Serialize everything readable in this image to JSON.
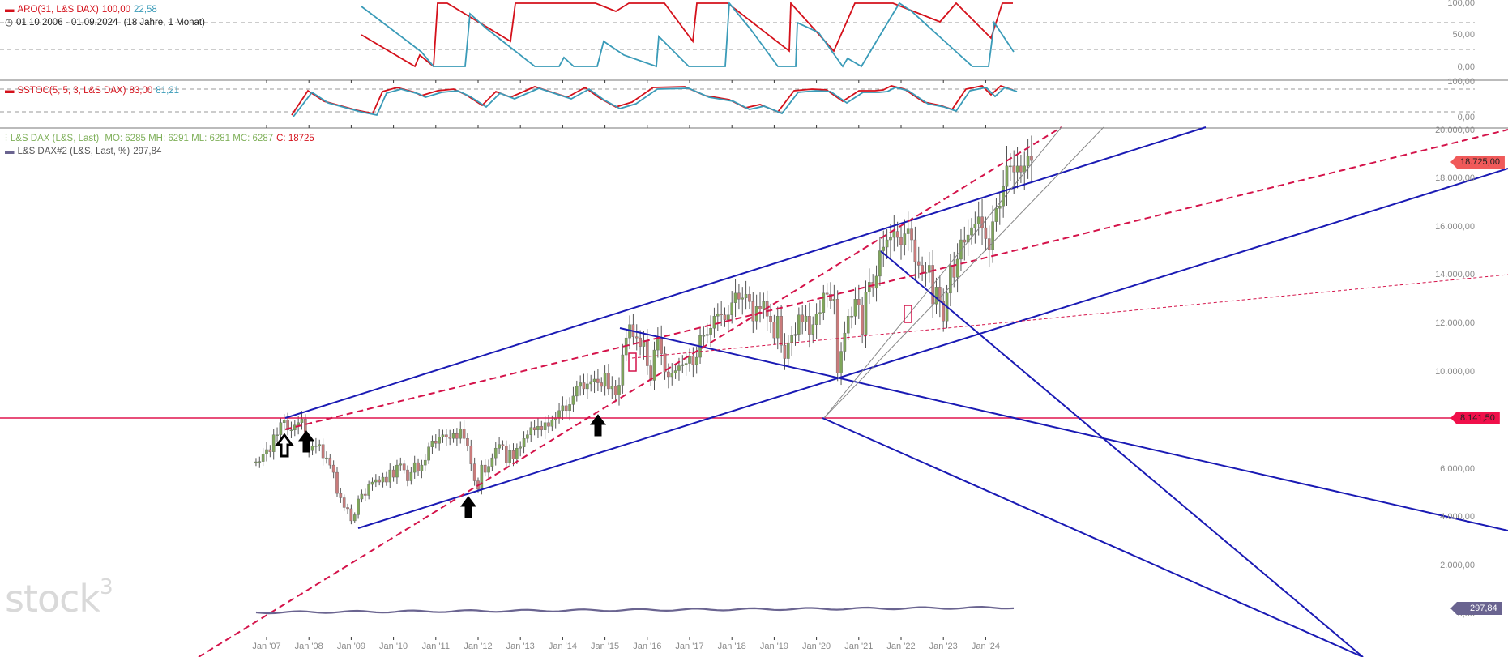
{
  "panels": {
    "aro": {
      "legend_name": "ARO(31, L&S DAX)",
      "value_up": "100,00",
      "value_down": "22,58",
      "date_range": "01.10.2006 - 01.09.2024",
      "duration": "(18 Jahre, 1 Monat)",
      "ticks": [
        "100,00",
        "50,00",
        "0,00"
      ],
      "colors": {
        "up": "#d4111b",
        "down": "#3a9bb8"
      }
    },
    "sstoc": {
      "legend_name": "SSTOC(5, 5, 3, L&S DAX)",
      "value_k": "83,00",
      "value_d": "81,21",
      "ticks": [
        "100,00",
        "0,00"
      ],
      "colors": {
        "k": "#d4111b",
        "d": "#3a9bb8"
      }
    },
    "main": {
      "series1_legend": "L&S DAX (L&S, Last)",
      "series1_ohlc": "MO: 6285 MH: 6291 ML: 6281 MC: 6287",
      "series1_close": "C: 18725",
      "series2_legend": "L&S DAX#2 (L&S, Last, %)",
      "series2_value": "297,84",
      "ticks": [
        "20.000,00",
        "18.000,00",
        "16.000,00",
        "14.000,00",
        "12.000,00",
        "10.000,00",
        "6.000,00",
        "4.000,00",
        "2.000,00",
        "0,00"
      ],
      "price_tags": {
        "last": "18.725,00",
        "hline": "8.141,50",
        "pct": "297,84"
      },
      "colors": {
        "up": "#7fa65a",
        "down": "#c97b7b",
        "channel": "#1a1ab4",
        "trend": "#d4134a",
        "hline": "#e0154f",
        "pct": "#6a6490",
        "last_tag": "#f05a5a",
        "hline_tag": "#f0104a"
      }
    }
  },
  "xaxis": {
    "labels": [
      "Jan '07",
      "Jan '08",
      "Jan '09",
      "Jan '10",
      "Jan '11",
      "Jan '12",
      "Jan '13",
      "Jan '14",
      "Jan '15",
      "Jan '16",
      "Jan '17",
      "Jan '18",
      "Jan '19",
      "Jan '20",
      "Jan '21",
      "Jan '22",
      "Jan '23",
      "Jan '24"
    ]
  },
  "watermark": "stock",
  "watermark_sup": "3",
  "chart_data": {
    "type": "candlestick",
    "title": "L&S DAX (L&S, Last) monthly",
    "xlabel": "",
    "ylabel": "",
    "ylim": [
      0,
      20000
    ],
    "x_range": [
      "2006-10",
      "2024-09"
    ],
    "monthly_close": [
      6287,
      6300,
      6600,
      6790,
      6700,
      7400,
      7400,
      7900,
      8000,
      7600,
      7600,
      7800,
      7900,
      8050,
      6850,
      6750,
      6950,
      6950,
      7000,
      6450,
      6450,
      6150,
      5850,
      4980,
      4800,
      4400,
      4350,
      3850,
      4100,
      4750,
      4950,
      4900,
      5350,
      5450,
      5550,
      5450,
      5650,
      5450,
      5950,
      5650,
      6150,
      6200,
      5950,
      5500,
      5850,
      6250,
      5900,
      6150,
      6350,
      6900,
      7150,
      7050,
      7300,
      7400,
      7300,
      7250,
      7450,
      7250,
      7650,
      7250,
      6950,
      6200,
      5500,
      5150,
      6150,
      5850,
      6100,
      6450,
      6850,
      7000,
      6950,
      6250,
      6750,
      6400,
      6850,
      6900,
      7250,
      7400,
      7700,
      7600,
      7750,
      7600,
      7900,
      7750,
      8000,
      8100,
      8400,
      8600,
      8400,
      8650,
      9000,
      9400,
      9550,
      9300,
      9500,
      9600,
      9700,
      9550,
      9400,
      9950,
      9300,
      9400,
      9050,
      9450,
      10700,
      11400,
      11950,
      11450,
      11400,
      11050,
      11300,
      10250,
      9650,
      10900,
      11400,
      10750,
      10000,
      9800,
      9950,
      10050,
      10250,
      10300,
      10350,
      10650,
      10300,
      10600,
      11500,
      11500,
      11550,
      11800,
      12300,
      12400,
      12350,
      12150,
      12350,
      12850,
      13250,
      13000,
      13050,
      13200,
      12900,
      12100,
      12700,
      12600,
      12900,
      12300,
      12050,
      11400,
      12300,
      11100,
      10550,
      11200,
      11500,
      11550,
      12350,
      12050,
      12300,
      11550,
      11950,
      12400,
      12450,
      13250,
      13200,
      12950,
      13000,
      9950,
      10850,
      11600,
      12300,
      12300,
      13000,
      12750,
      11550,
      13300,
      13700,
      13450,
      13950,
      15000,
      15150,
      15450,
      15550,
      15800,
      15550,
      15250,
      15700,
      15900,
      15450,
      14550,
      14400,
      14100,
      14100,
      14400,
      12800,
      13500,
      12900,
      12100,
      13250,
      14400,
      13900,
      14650,
      15450,
      15350,
      15650,
      15950,
      16100,
      16400,
      15950,
      15500,
      15050,
      16200,
      16750,
      16850,
      17650,
      18500,
      18500,
      18250,
      18500,
      18250,
      18500,
      18900,
      18725
    ],
    "series": [
      {
        "name": "L&S DAX#2 (L&S, Last, %)",
        "last": 297.84
      },
      {
        "name": "ARO up",
        "last": 100.0
      },
      {
        "name": "ARO down",
        "last": 22.58
      },
      {
        "name": "SSTOC %K",
        "last": 83.0
      },
      {
        "name": "SSTOC %D",
        "last": 81.21
      }
    ],
    "horizontal_line": 8141.5,
    "last_price": 18725
  }
}
